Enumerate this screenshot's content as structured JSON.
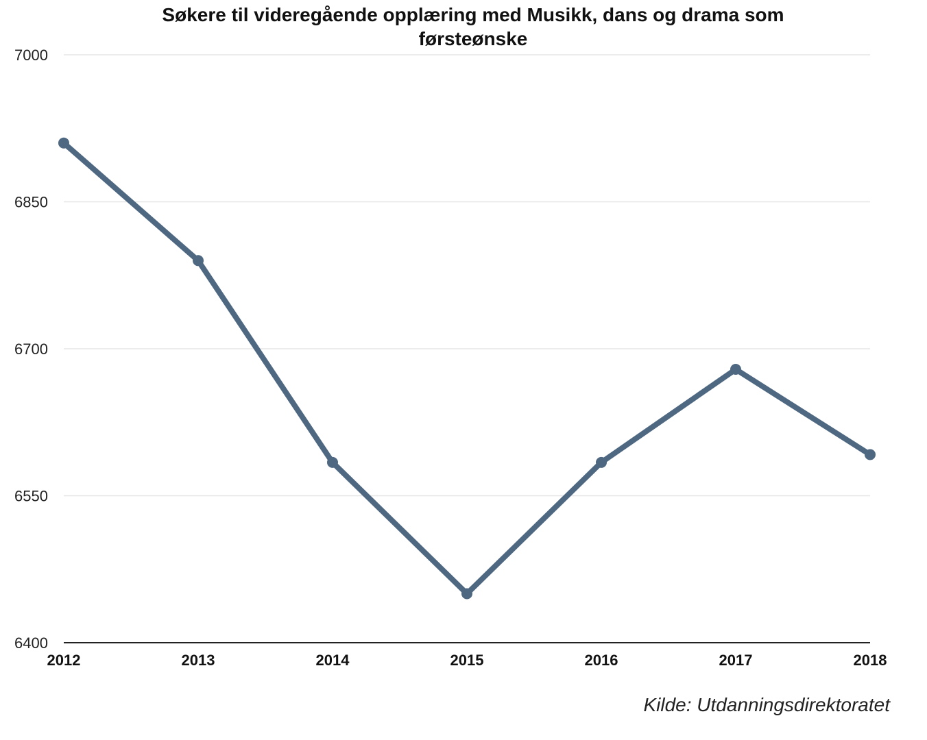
{
  "chart_data": {
    "type": "line",
    "title_line1": "Søkere til videregående opplæring med Musikk, dans og drama som",
    "title_line2": "førsteønske",
    "x": [
      "2012",
      "2013",
      "2014",
      "2015",
      "2016",
      "2017",
      "2018"
    ],
    "series": [
      {
        "values": [
          6910,
          6790,
          6584,
          6450,
          6584,
          6679,
          6592
        ]
      }
    ],
    "y_ticks": [
      "7000",
      "6850",
      "6700",
      "6550",
      "6400"
    ],
    "ylim": [
      6400,
      7000
    ],
    "grid": "horizontal",
    "legend": "none",
    "source": "Kilde: Utdanningsdirektoratet",
    "colors": {
      "line": "#4f6882",
      "grid": "#e6e6e6",
      "axis": "#222222"
    }
  }
}
